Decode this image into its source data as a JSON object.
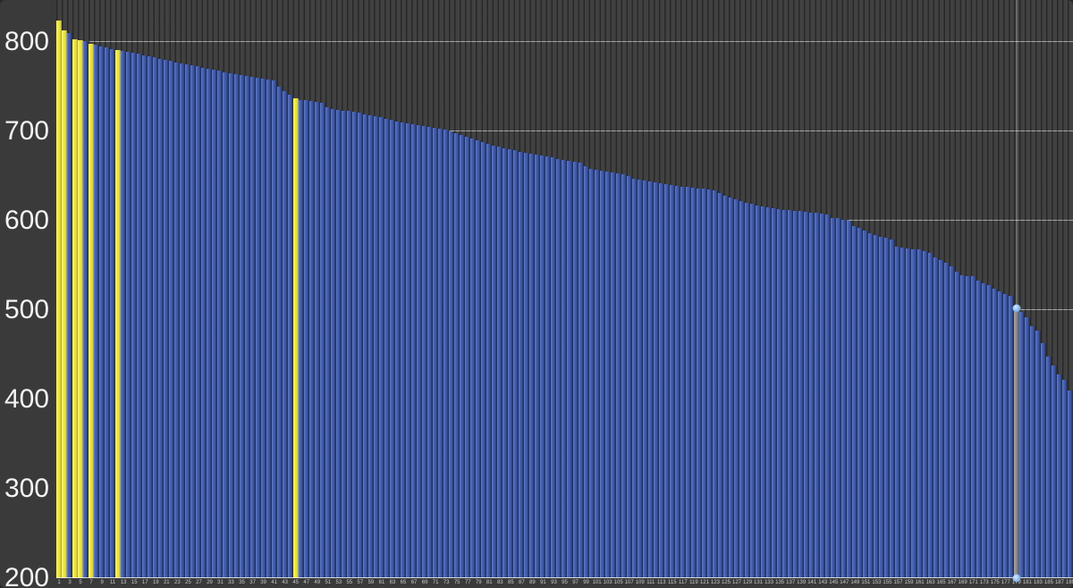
{
  "chart_data": {
    "type": "bar",
    "title": "",
    "xlabel": "",
    "ylabel": "",
    "legend": null,
    "grid": "horizontal-on",
    "ylim": [
      200,
      847
    ],
    "y_ticks": [
      800,
      700,
      600,
      500,
      400,
      300,
      200
    ],
    "x_tick_labels": [
      "1",
      "3",
      "5",
      "7",
      "9",
      "11",
      "13",
      "15",
      "17",
      "19",
      "21",
      "23",
      "25",
      "27",
      "29",
      "31",
      "33",
      "35",
      "37",
      "39",
      "41",
      "43",
      "45",
      "47",
      "49",
      "51",
      "53",
      "55",
      "57",
      "59",
      "61",
      "63",
      "65",
      "67",
      "69",
      "71",
      "73",
      "75",
      "77",
      "79",
      "81",
      "83",
      "85",
      "87",
      "89",
      "91",
      "93",
      "95",
      "97",
      "99",
      "101",
      "103",
      "105",
      "107",
      "109",
      "111",
      "113",
      "115",
      "117",
      "119",
      "121",
      "123",
      "125",
      "127",
      "129",
      "131",
      "133",
      "135",
      "137",
      "139",
      "141",
      "143",
      "145",
      "147",
      "149",
      "151",
      "153",
      "155",
      "157",
      "159",
      "161",
      "163",
      "165",
      "167",
      "169",
      "171",
      "173",
      "175",
      "177",
      "179",
      "181",
      "183",
      "185",
      "187",
      "189"
    ],
    "n_bars": 189,
    "values": [
      824,
      813,
      810,
      803,
      802,
      801,
      798,
      797,
      795,
      794,
      792,
      791,
      790,
      789,
      788,
      787,
      785,
      784,
      783,
      781,
      780,
      779,
      777,
      776,
      775,
      774,
      773,
      771,
      770,
      769,
      768,
      766,
      765,
      764,
      763,
      762,
      761,
      760,
      759,
      758,
      757,
      750,
      745,
      741,
      737,
      735,
      735,
      734,
      733,
      732,
      727,
      725,
      724,
      723,
      723,
      722,
      721,
      719,
      718,
      717,
      716,
      714,
      713,
      711,
      710,
      709,
      708,
      707,
      706,
      705,
      704,
      703,
      702,
      700,
      698,
      696,
      694,
      692,
      690,
      688,
      686,
      684,
      683,
      681,
      680,
      679,
      677,
      676,
      675,
      674,
      673,
      672,
      671,
      669,
      668,
      667,
      666,
      665,
      661,
      658,
      657,
      656,
      655,
      654,
      653,
      652,
      650,
      647,
      646,
      645,
      644,
      643,
      642,
      641,
      640,
      639,
      638,
      638,
      637,
      636,
      636,
      635,
      634,
      631,
      628,
      626,
      624,
      622,
      620,
      619,
      617,
      616,
      615,
      614,
      613,
      612,
      612,
      611,
      611,
      610,
      609,
      609,
      608,
      607,
      603,
      603,
      601,
      600,
      594,
      592,
      589,
      586,
      584,
      582,
      581,
      579,
      571,
      570,
      569,
      568,
      568,
      566,
      564,
      559,
      556,
      553,
      549,
      543,
      539,
      538,
      538,
      533,
      530,
      528,
      524,
      521,
      518,
      516,
      502,
      498,
      492,
      482,
      477,
      463,
      448,
      438,
      428,
      422,
      410
    ],
    "highlighted_indices_1based": [
      1,
      2,
      4,
      5,
      7,
      12,
      45
    ],
    "selected_index_1based": 179,
    "selected_value": 502,
    "colors": {
      "background": "#3a3a3a",
      "bar_blue": "#3b57a8",
      "bar_yellow": "#e8e337",
      "bar_selected_gray": "#8b8b8b",
      "gridline": "#ebebeb",
      "y_label_text": "#f4f4f4",
      "x_label_text": "#c9c9c9",
      "marker_blue": "#5e9bdd"
    }
  }
}
